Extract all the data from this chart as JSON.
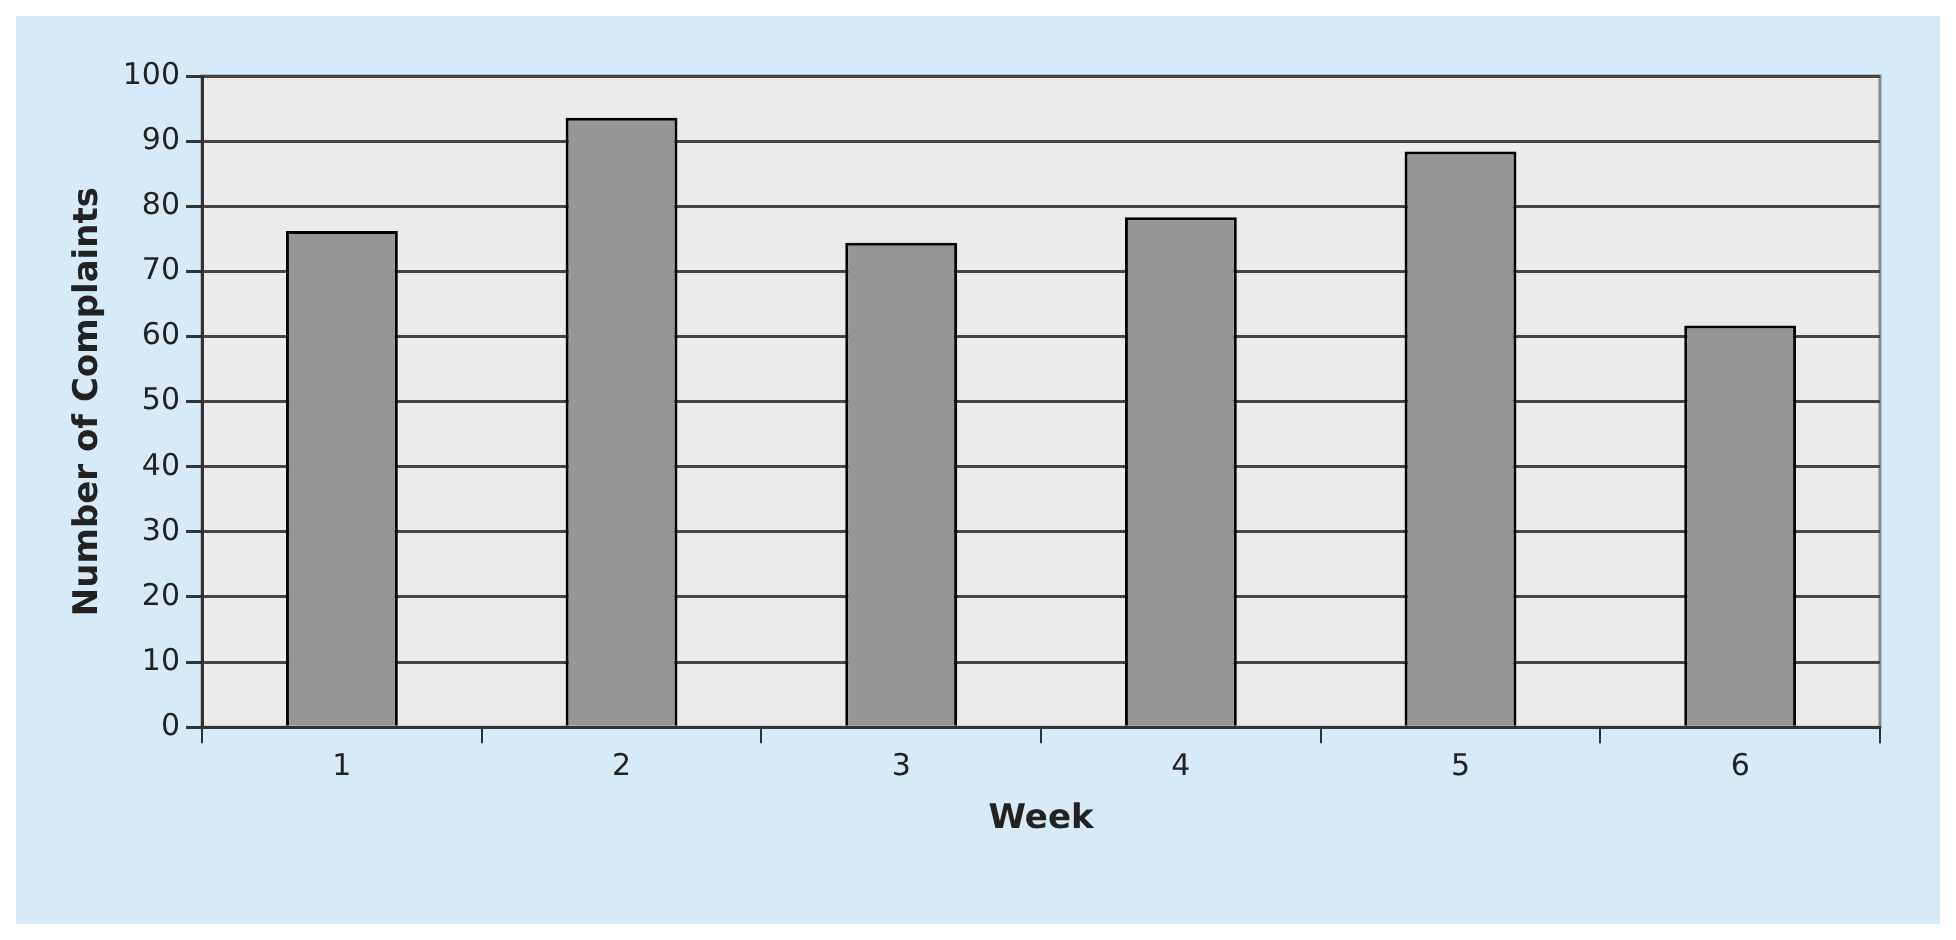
{
  "chart_data": {
    "type": "bar",
    "xlabel": "Week",
    "ylabel": "Number of Complaints",
    "categories": [
      "1",
      "2",
      "3",
      "4",
      "5",
      "6"
    ],
    "values": [
      76.2,
      93.6,
      74.4,
      78.3,
      88.4,
      61.7
    ],
    "color": "#969696",
    "ylim": [
      0,
      100
    ],
    "yticks": [
      0,
      10,
      20,
      30,
      40,
      50,
      60,
      70,
      80,
      90,
      100
    ],
    "grid": "y",
    "legend": false
  }
}
